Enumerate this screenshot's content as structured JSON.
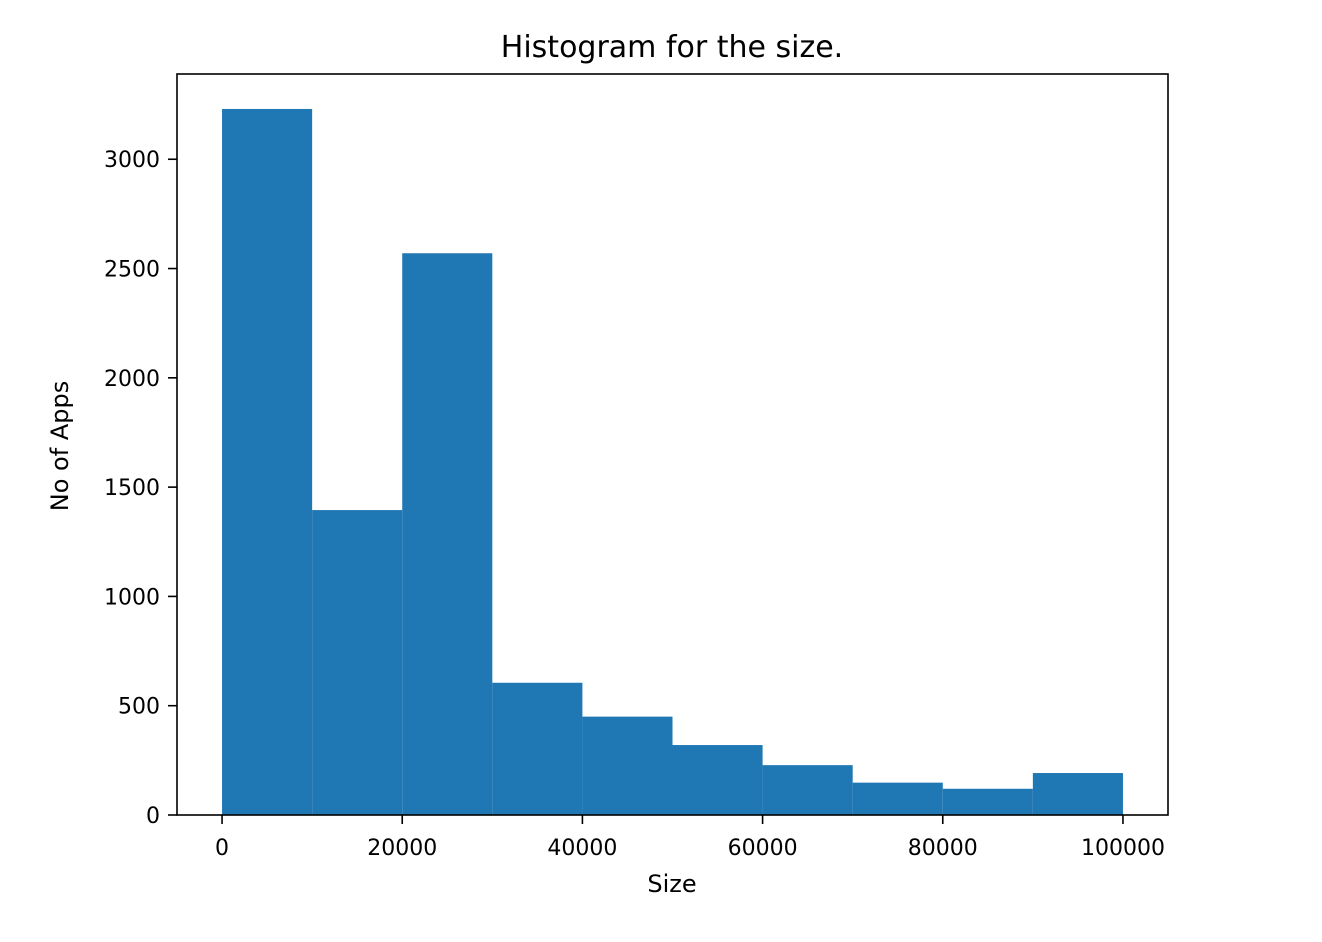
{
  "chart_data": {
    "type": "bar",
    "title": "Histogram for the size.",
    "xlabel": "Size",
    "ylabel": "No of Apps",
    "bins": [
      {
        "start": 0,
        "end": 10000,
        "count": 3230
      },
      {
        "start": 10000,
        "end": 20000,
        "count": 1395
      },
      {
        "start": 20000,
        "end": 30000,
        "count": 2570
      },
      {
        "start": 30000,
        "end": 40000,
        "count": 605
      },
      {
        "start": 40000,
        "end": 50000,
        "count": 450
      },
      {
        "start": 50000,
        "end": 60000,
        "count": 320
      },
      {
        "start": 60000,
        "end": 70000,
        "count": 228
      },
      {
        "start": 70000,
        "end": 80000,
        "count": 148
      },
      {
        "start": 80000,
        "end": 90000,
        "count": 120
      },
      {
        "start": 90000,
        "end": 100000,
        "count": 192
      }
    ],
    "xlim": [
      -5000,
      105000
    ],
    "ylim": [
      0,
      3390
    ],
    "xticks": [
      0,
      20000,
      40000,
      60000,
      80000,
      100000
    ],
    "xtick_labels": [
      "0",
      "20000",
      "40000",
      "60000",
      "80000",
      "100000"
    ],
    "yticks": [
      0,
      500,
      1000,
      1500,
      2000,
      2500,
      3000
    ],
    "ytick_labels": [
      "0",
      "500",
      "1000",
      "1500",
      "2000",
      "2500",
      "3000"
    ],
    "bar_color": "#1f77b4",
    "grid": false,
    "legend": "none"
  }
}
